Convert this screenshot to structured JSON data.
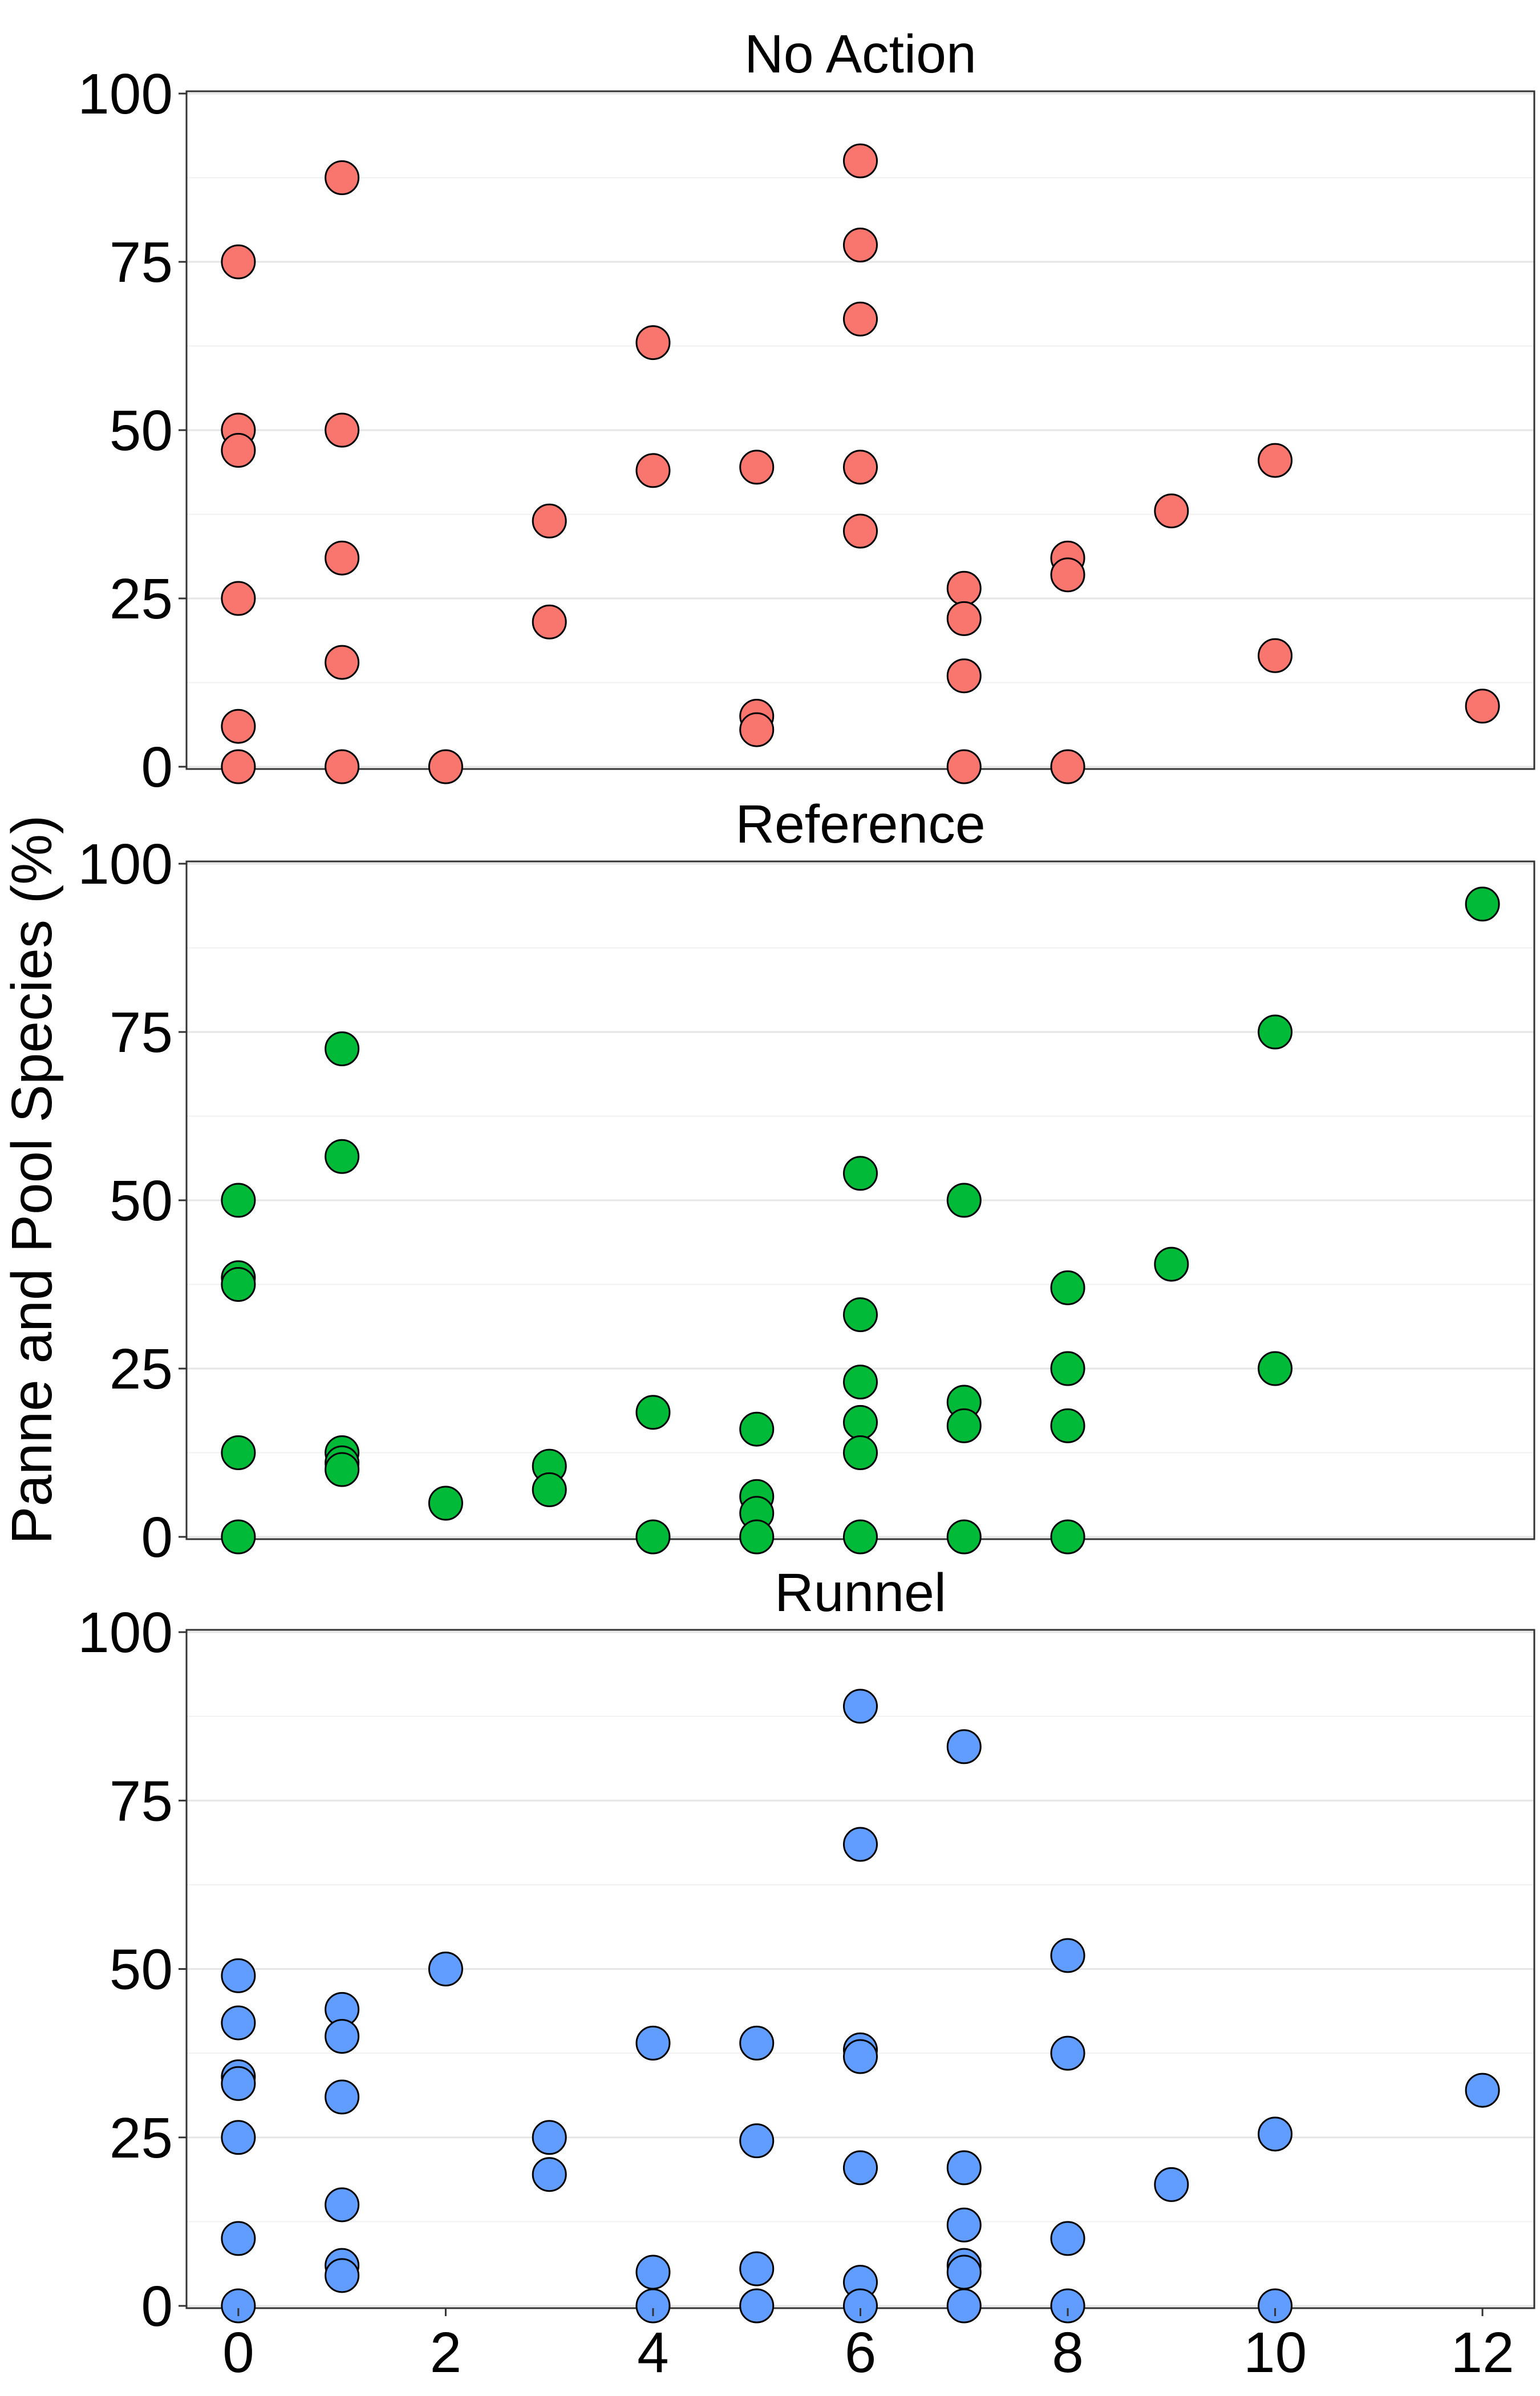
{
  "chart_data": {
    "type": "scatter",
    "ylabel": "Panne and Pool Species (%)",
    "xlabel": "",
    "xlim": [
      -0.5,
      12.5
    ],
    "ylim": [
      0,
      100
    ],
    "x_ticks": [
      0,
      2,
      4,
      6,
      8,
      10,
      12
    ],
    "y_ticks": [
      0,
      25,
      50,
      75,
      100
    ],
    "grid": true,
    "legend": "none",
    "panels": [
      {
        "title": "No Action",
        "color": "#F8766D",
        "points": [
          [
            0,
            75
          ],
          [
            0,
            50
          ],
          [
            0,
            47
          ],
          [
            0,
            25
          ],
          [
            0,
            6
          ],
          [
            0,
            0
          ],
          [
            1,
            87.5
          ],
          [
            1,
            50
          ],
          [
            1,
            31
          ],
          [
            1,
            15.5
          ],
          [
            1,
            0
          ],
          [
            2,
            0
          ],
          [
            3,
            36.5
          ],
          [
            3,
            21.5
          ],
          [
            4,
            63
          ],
          [
            4,
            44
          ],
          [
            5,
            44.5
          ],
          [
            5,
            7.5
          ],
          [
            5,
            5.5
          ],
          [
            6,
            90
          ],
          [
            6,
            77.5
          ],
          [
            6,
            66.5
          ],
          [
            6,
            44.5
          ],
          [
            6,
            35
          ],
          [
            7,
            26.5
          ],
          [
            7,
            22
          ],
          [
            7,
            13.5
          ],
          [
            7,
            0
          ],
          [
            8,
            31
          ],
          [
            8,
            28.5
          ],
          [
            8,
            0
          ],
          [
            9,
            38
          ],
          [
            10,
            45.5
          ],
          [
            10,
            16.5
          ],
          [
            12,
            9
          ]
        ]
      },
      {
        "title": "Reference",
        "color": "#00BA38",
        "points": [
          [
            0,
            50
          ],
          [
            0,
            38.5
          ],
          [
            0,
            37.5
          ],
          [
            0,
            12.5
          ],
          [
            0,
            0
          ],
          [
            1,
            72.5
          ],
          [
            1,
            56.5
          ],
          [
            1,
            12.5
          ],
          [
            1,
            11
          ],
          [
            1,
            10
          ],
          [
            2,
            5
          ],
          [
            3,
            10.5
          ],
          [
            3,
            7
          ],
          [
            4,
            18.5
          ],
          [
            4,
            0
          ],
          [
            5,
            16
          ],
          [
            5,
            6
          ],
          [
            5,
            3.5
          ],
          [
            5,
            0
          ],
          [
            6,
            54
          ],
          [
            6,
            33
          ],
          [
            6,
            23
          ],
          [
            6,
            17
          ],
          [
            6,
            12.5
          ],
          [
            6,
            0
          ],
          [
            7,
            50
          ],
          [
            7,
            20
          ],
          [
            7,
            16.5
          ],
          [
            7,
            0
          ],
          [
            8,
            37
          ],
          [
            8,
            25
          ],
          [
            8,
            16.5
          ],
          [
            8,
            0
          ],
          [
            9,
            40.5
          ],
          [
            10,
            75
          ],
          [
            10,
            25
          ],
          [
            12,
            94
          ]
        ]
      },
      {
        "title": "Runnel",
        "color": "#619CFF",
        "points": [
          [
            0,
            49
          ],
          [
            0,
            42
          ],
          [
            0,
            34
          ],
          [
            0,
            33
          ],
          [
            0,
            25
          ],
          [
            0,
            10
          ],
          [
            0,
            0
          ],
          [
            1,
            44
          ],
          [
            1,
            40
          ],
          [
            1,
            31
          ],
          [
            1,
            15
          ],
          [
            1,
            6
          ],
          [
            1,
            4.5
          ],
          [
            2,
            50
          ],
          [
            3,
            25
          ],
          [
            3,
            19.5
          ],
          [
            4,
            39
          ],
          [
            4,
            5
          ],
          [
            4,
            0
          ],
          [
            5,
            39
          ],
          [
            5,
            24.5
          ],
          [
            5,
            5.5
          ],
          [
            5,
            0
          ],
          [
            6,
            89
          ],
          [
            6,
            68.5
          ],
          [
            6,
            38
          ],
          [
            6,
            37
          ],
          [
            6,
            20.5
          ],
          [
            6,
            3.5
          ],
          [
            6,
            0
          ],
          [
            7,
            83
          ],
          [
            7,
            20.5
          ],
          [
            7,
            12
          ],
          [
            7,
            6
          ],
          [
            7,
            5
          ],
          [
            7,
            0
          ],
          [
            8,
            52
          ],
          [
            8,
            37.5
          ],
          [
            8,
            10
          ],
          [
            8,
            0
          ],
          [
            9,
            18
          ],
          [
            10,
            25.5
          ],
          [
            10,
            0
          ],
          [
            12,
            32
          ]
        ]
      }
    ]
  }
}
